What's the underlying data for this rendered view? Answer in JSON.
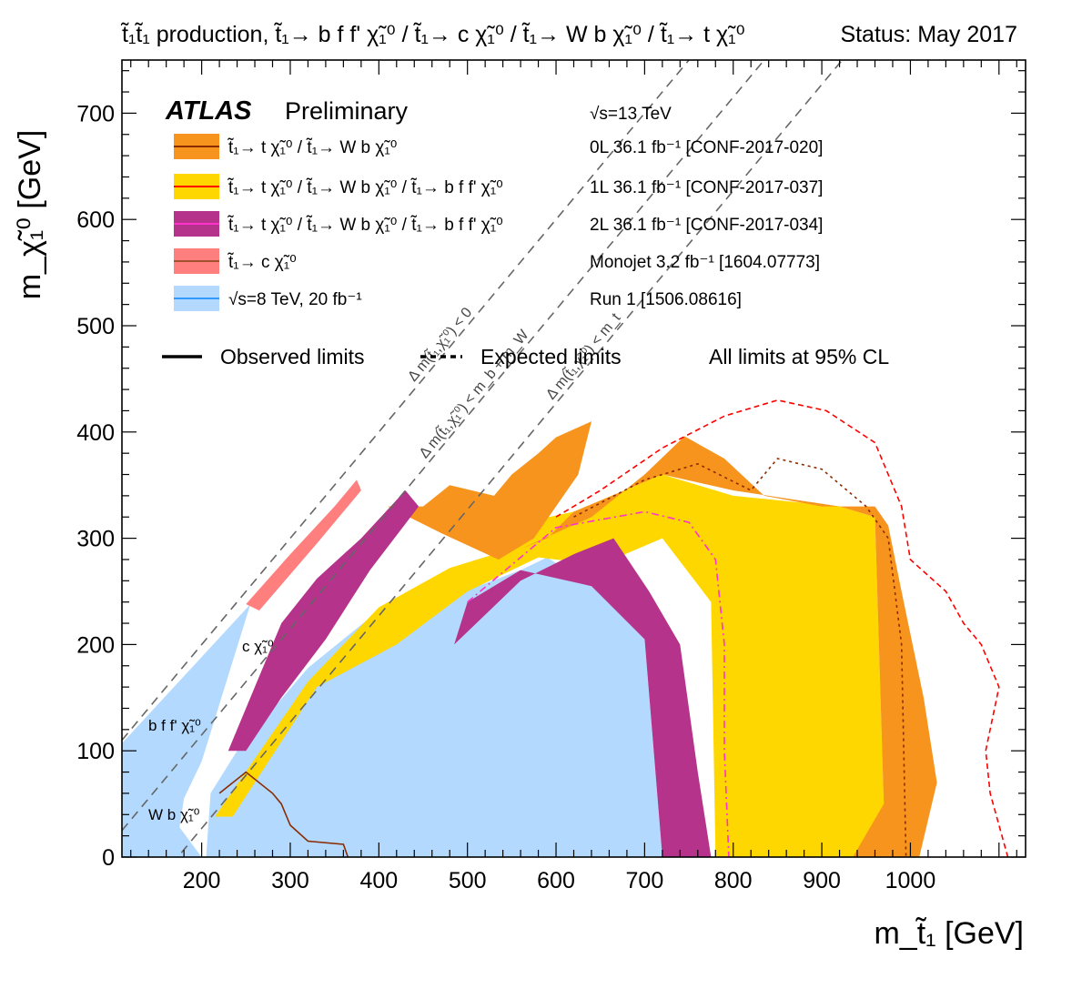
{
  "header": {
    "process": "t̃₁t̃₁ production, t̃₁→ b f f' χ̃₁⁰ / t̃₁→ c χ̃₁⁰ / t̃₁→ W b χ̃₁⁰ / t̃₁→ t χ̃₁⁰",
    "status": "Status: May 2017"
  },
  "chart_data": {
    "type": "area",
    "title": "",
    "xlabel": "m_t̃₁ [GeV]",
    "ylabel": "m_χ̃₁⁰ [GeV]",
    "xlim": [
      110,
      1130
    ],
    "ylim": [
      0,
      750
    ],
    "x_ticks": [
      "200",
      "300",
      "400",
      "500",
      "600",
      "700",
      "800",
      "900",
      "1000"
    ],
    "y_ticks": [
      "0",
      "100",
      "200",
      "300",
      "400",
      "500",
      "600",
      "700"
    ],
    "grid": false,
    "legend_position": "top-left",
    "experiment": {
      "brand": "ATLAS",
      "label": "Preliminary",
      "energy": "√s=13 TeV"
    },
    "legend": [
      {
        "label": "t̃₁→ t χ̃₁⁰ / t̃₁→ W b χ̃₁⁰",
        "ref": "0L 36.1 fb⁻¹ [CONF-2017-020]",
        "fill": "#f7941d",
        "line": "#8b2b00"
      },
      {
        "label": "t̃₁→ t χ̃₁⁰ / t̃₁→ W b χ̃₁⁰ / t̃₁→ b f f' χ̃₁⁰",
        "ref": "1L 36.1 fb⁻¹ [CONF-2017-037]",
        "fill": "#ffd700",
        "line": "#ff0000"
      },
      {
        "label": "t̃₁→ t χ̃₁⁰ / t̃₁→ W b χ̃₁⁰ / t̃₁→ b f f' χ̃₁⁰",
        "ref": "2L 36.1 fb⁻¹ [CONF-2017-034]",
        "fill": "#b5338a",
        "line": "#ff33cc"
      },
      {
        "label": "t̃₁→ c χ̃₁⁰",
        "ref": "Monojet 3.2 fb⁻¹  [1604.07773]",
        "fill": "#ff7f7f",
        "line": "#a0522d"
      },
      {
        "label": "√s=8 TeV, 20 fb⁻¹",
        "ref": "Run 1 [1506.08616]",
        "fill": "#b3d9ff",
        "line": "#3399ff"
      }
    ],
    "line_styles": {
      "observed": "Observed limits",
      "expected": "Expected limits",
      "cl_note": "All limits at 95% CL"
    },
    "kinematic_lines": [
      {
        "label": "Δ m(t̃₁,χ̃₁⁰) < 0",
        "offset": 0
      },
      {
        "label": "Δ m(t̃₁,χ̃₁⁰) < m_b + m_W",
        "offset": 85
      },
      {
        "label": "Δ m(t̃₁,χ̃₁⁰) < m_t",
        "offset": 173
      }
    ],
    "region_labels": [
      "c χ̃₁⁰",
      "b f f' χ̃₁⁰",
      "W b χ̃₁⁰"
    ],
    "series": [
      {
        "name": "√s=8 TeV, 20 fb⁻¹",
        "fill": "#b3d9ff",
        "points": [
          [
            110,
            0
          ],
          [
            110,
            107
          ],
          [
            255,
            238
          ],
          [
            200,
            90
          ],
          [
            180,
            55
          ],
          [
            175,
            28
          ],
          [
            200,
            0
          ]
        ]
      },
      {
        "name": "√s=8 TeV, 20 fb⁻¹",
        "fill": "#b3d9ff",
        "points": [
          [
            205,
            0
          ],
          [
            210,
            60
          ],
          [
            240,
            100
          ],
          [
            320,
            178
          ],
          [
            400,
            232
          ],
          [
            480,
            245
          ],
          [
            560,
            270
          ],
          [
            590,
            282
          ],
          [
            640,
            255
          ],
          [
            700,
            205
          ],
          [
            720,
            0
          ]
        ]
      },
      {
        "name": "1L 36.1 fb⁻¹ [CONF-2017-037]",
        "fill": "#ffd700",
        "points": [
          [
            215,
            38
          ],
          [
            320,
            165
          ],
          [
            400,
            235
          ],
          [
            480,
            272
          ],
          [
            550,
            290
          ],
          [
            570,
            316
          ],
          [
            620,
            325
          ],
          [
            720,
            360
          ],
          [
            800,
            340
          ],
          [
            920,
            330
          ],
          [
            960,
            320
          ],
          [
            970,
            50
          ],
          [
            945,
            0
          ],
          [
            780,
            0
          ],
          [
            775,
            240
          ],
          [
            720,
            300
          ],
          [
            650,
            275
          ],
          [
            580,
            282
          ],
          [
            500,
            250
          ],
          [
            420,
            200
          ],
          [
            330,
            160
          ],
          [
            235,
            38
          ]
        ]
      },
      {
        "name": "0L 36.1 fb⁻¹ [CONF-2017-020]",
        "fill": "#f7941d",
        "points": [
          [
            560,
            290
          ],
          [
            640,
            320
          ],
          [
            700,
            360
          ],
          [
            745,
            396
          ],
          [
            790,
            375
          ],
          [
            835,
            340
          ],
          [
            900,
            330
          ],
          [
            960,
            330
          ],
          [
            975,
            312
          ],
          [
            990,
            250
          ],
          [
            1015,
            150
          ],
          [
            1030,
            70
          ],
          [
            1010,
            0
          ],
          [
            935,
            0
          ],
          [
            970,
            50
          ],
          [
            960,
            320
          ],
          [
            920,
            330
          ],
          [
            800,
            345
          ],
          [
            720,
            360
          ],
          [
            620,
            325
          ],
          [
            590,
            300
          ]
        ]
      },
      {
        "name": "0L 36.1 fb⁻¹ [CONF-2017-020]",
        "fill": "#f7941d",
        "points": [
          [
            410,
            330
          ],
          [
            450,
            330
          ],
          [
            480,
            350
          ],
          [
            530,
            340
          ],
          [
            550,
            360
          ],
          [
            580,
            380
          ],
          [
            600,
            395
          ],
          [
            640,
            410
          ],
          [
            625,
            360
          ],
          [
            575,
            300
          ],
          [
            535,
            280
          ],
          [
            470,
            305
          ]
        ]
      },
      {
        "name": "2L 36.1 fb⁻¹ [CONF-2017-034]",
        "fill": "#b5338a",
        "points": [
          [
            230,
            100
          ],
          [
            290,
            220
          ],
          [
            330,
            262
          ],
          [
            380,
            300
          ],
          [
            430,
            345
          ],
          [
            445,
            330
          ],
          [
            390,
            270
          ],
          [
            340,
            205
          ],
          [
            290,
            150
          ],
          [
            250,
            100
          ],
          [
            235,
            100
          ]
        ]
      },
      {
        "name": "2L 36.1 fb⁻¹ [CONF-2017-034]",
        "fill": "#b5338a",
        "points": [
          [
            485,
            200
          ],
          [
            560,
            260
          ],
          [
            620,
            285
          ],
          [
            665,
            300
          ],
          [
            705,
            250
          ],
          [
            740,
            200
          ],
          [
            760,
            80
          ],
          [
            775,
            0
          ],
          [
            720,
            0
          ],
          [
            700,
            205
          ],
          [
            640,
            255
          ],
          [
            560,
            270
          ],
          [
            500,
            240
          ]
        ]
      },
      {
        "name": "Monojet 3.2 fb⁻¹  [1604.07773]",
        "fill": "#ff7f7f",
        "points": [
          [
            250,
            238
          ],
          [
            300,
            285
          ],
          [
            350,
            330
          ],
          [
            375,
            355
          ],
          [
            380,
            345
          ],
          [
            330,
            295
          ],
          [
            265,
            232
          ]
        ]
      }
    ],
    "boundaries": [
      {
        "series": "0L 36.1 fb⁻¹ [CONF-2017-020]",
        "kind": "expected",
        "stroke": "#8b2b00",
        "dash": "3 4",
        "points": [
          [
            620,
            320
          ],
          [
            700,
            355
          ],
          [
            760,
            370
          ],
          [
            820,
            345
          ],
          [
            850,
            375
          ],
          [
            900,
            365
          ],
          [
            950,
            330
          ],
          [
            975,
            300
          ],
          [
            990,
            200
          ],
          [
            995,
            0
          ]
        ]
      },
      {
        "series": "1L 36.1 fb⁻¹ [CONF-2017-037]",
        "kind": "expected",
        "stroke": "#ff0000",
        "dash": "6 4",
        "points": [
          [
            600,
            320
          ],
          [
            650,
            345
          ],
          [
            720,
            385
          ],
          [
            790,
            415
          ],
          [
            850,
            430
          ],
          [
            905,
            420
          ],
          [
            960,
            390
          ],
          [
            990,
            330
          ],
          [
            1000,
            280
          ],
          [
            1040,
            250
          ],
          [
            1060,
            220
          ],
          [
            1080,
            200
          ],
          [
            1100,
            160
          ],
          [
            1085,
            100
          ],
          [
            1090,
            60
          ],
          [
            1110,
            0
          ]
        ]
      },
      {
        "series": "2L 36.1 fb⁻¹ [CONF-2017-034]",
        "kind": "expected",
        "stroke": "#ff33cc",
        "dash": "8 4 2 4",
        "points": [
          [
            500,
            240
          ],
          [
            600,
            310
          ],
          [
            700,
            325
          ],
          [
            750,
            315
          ],
          [
            780,
            280
          ],
          [
            790,
            200
          ],
          [
            790,
            100
          ],
          [
            795,
            0
          ]
        ]
      },
      {
        "series": "0L 36.1 fb⁻¹ [CONF-2017-020]",
        "kind": "observed",
        "stroke": "#8b2b00",
        "dash": "",
        "points": [
          [
            220,
            60
          ],
          [
            250,
            80
          ],
          [
            280,
            60
          ],
          [
            290,
            50
          ],
          [
            300,
            30
          ],
          [
            320,
            15
          ],
          [
            360,
            12
          ],
          [
            365,
            0
          ]
        ]
      }
    ]
  }
}
